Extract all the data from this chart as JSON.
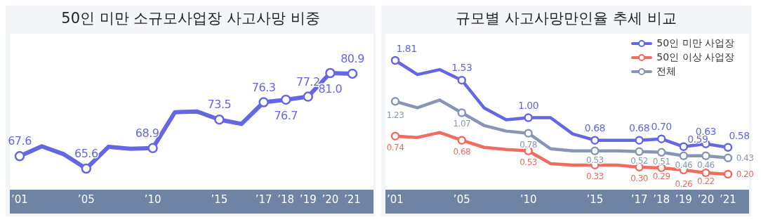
{
  "chart_data": [
    {
      "type": "line",
      "title": "50인 미만 소규모사업장 사고사망 비중",
      "categories": [
        "’01",
        null,
        null,
        "’05",
        null,
        null,
        "’10",
        null,
        null,
        "’15",
        null,
        "’17",
        "’18",
        "’19",
        "’20",
        "’21"
      ],
      "series": [
        {
          "color": "#6567e2",
          "values": [
            67.6,
            69.2,
            67.9,
            65.6,
            69.1,
            68.8,
            68.9,
            74.7,
            74.8,
            73.5,
            72.8,
            76.3,
            76.7,
            77.2,
            81.0,
            80.9
          ],
          "value_labels": [
            "67.6",
            null,
            null,
            "65.6",
            null,
            null,
            "68.9",
            null,
            null,
            "73.5",
            null,
            "76.3",
            "76.7",
            "77.2",
            "81.0",
            "80.9"
          ]
        }
      ],
      "marker": "circle",
      "legend": false,
      "tick_labels": "x"
    },
    {
      "type": "line",
      "title": "규모별 사고사망만인율 추세 비교",
      "categories": [
        "’01",
        null,
        null,
        "’05",
        null,
        null,
        "’10",
        null,
        null,
        "’15",
        null,
        "’17",
        "’18",
        "’19",
        "’20",
        "’21"
      ],
      "series": [
        {
          "name": "50인 미만 사업장",
          "color": "#6567e2",
          "values": [
            1.81,
            1.61,
            1.68,
            1.53,
            1.14,
            0.97,
            1.0,
            1.0,
            0.77,
            0.68,
            0.68,
            0.68,
            0.7,
            0.59,
            0.63,
            0.58
          ],
          "value_labels": [
            "1.81",
            null,
            null,
            "1.53",
            null,
            null,
            "1.00",
            null,
            null,
            "0.68",
            null,
            "0.68",
            "0.70",
            "0.59",
            "0.63",
            "0.58"
          ]
        },
        {
          "name": "50인 이상 사업장",
          "color": "#f26b5f",
          "values": [
            0.74,
            0.72,
            0.79,
            0.68,
            0.58,
            0.55,
            0.53,
            0.35,
            0.33,
            0.33,
            0.33,
            0.3,
            0.29,
            0.26,
            0.22,
            0.2
          ],
          "value_labels": [
            "0.74",
            null,
            null,
            "0.68",
            null,
            null,
            "0.53",
            null,
            null,
            "0.33",
            null,
            "0.30",
            "0.29",
            "0.26",
            "0.22",
            "0.20"
          ]
        },
        {
          "name": "전체",
          "color": "#8797b3",
          "values": [
            1.23,
            1.14,
            1.25,
            1.07,
            0.89,
            0.81,
            0.78,
            0.56,
            0.53,
            0.53,
            0.53,
            0.52,
            0.51,
            0.46,
            0.46,
            0.43
          ],
          "value_labels": [
            "1.23",
            null,
            null,
            "1.07",
            null,
            null,
            "0.78",
            null,
            null,
            "0.53",
            null,
            "0.52",
            "0.51",
            "0.46",
            "0.46",
            "0.43"
          ]
        }
      ],
      "marker": "circle",
      "legend": "top right",
      "tick_labels": "x"
    }
  ]
}
